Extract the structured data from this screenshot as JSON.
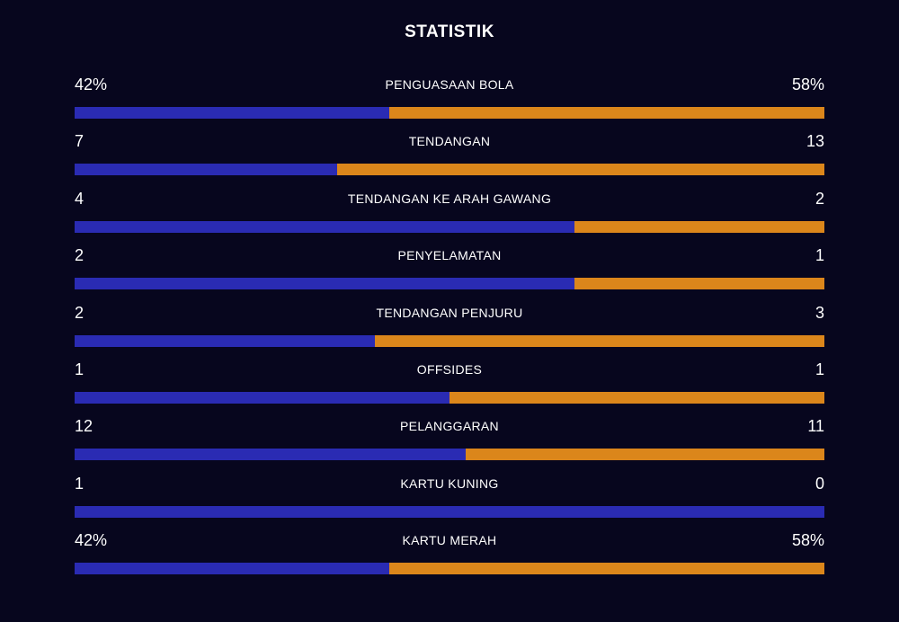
{
  "title": "STATISTIK",
  "colors": {
    "background": "#07061e",
    "home_bar": "#2a2bb3",
    "away_bar": "#db861b",
    "text": "#ffffff"
  },
  "stats": [
    {
      "label": "PENGUASAAN BOLA",
      "home": "42%",
      "away": "58%",
      "home_share": 0.42
    },
    {
      "label": "TENDANGAN",
      "home": "7",
      "away": "13",
      "home_share": 0.35
    },
    {
      "label": "TENDANGAN KE ARAH GAWANG",
      "home": "4",
      "away": "2",
      "home_share": 0.667
    },
    {
      "label": "PENYELAMATAN",
      "home": "2",
      "away": "1",
      "home_share": 0.667
    },
    {
      "label": "TENDANGAN PENJURU",
      "home": "2",
      "away": "3",
      "home_share": 0.4
    },
    {
      "label": "OFFSIDES",
      "home": "1",
      "away": "1",
      "home_share": 0.5
    },
    {
      "label": "PELANGGARAN",
      "home": "12",
      "away": "11",
      "home_share": 0.522
    },
    {
      "label": "KARTU KUNING",
      "home": "1",
      "away": "0",
      "home_share": 1.0
    },
    {
      "label": "KARTU MERAH",
      "home": "42%",
      "away": "58%",
      "home_share": 0.42
    }
  ]
}
